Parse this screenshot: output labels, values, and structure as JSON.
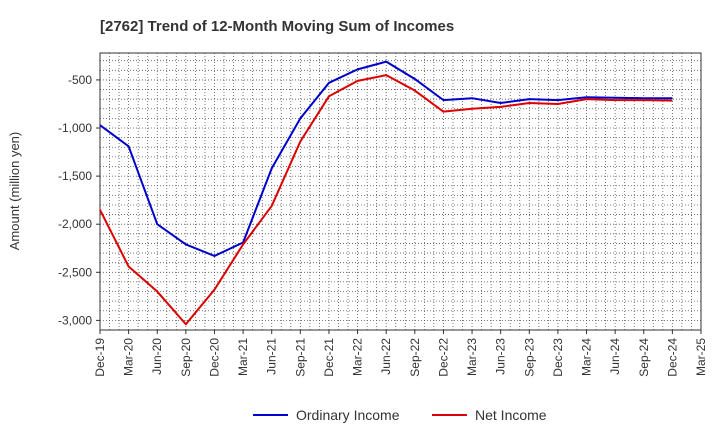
{
  "chart_data": {
    "type": "line",
    "title": "[2762]  Trend of 12-Month Moving Sum of Incomes",
    "xlabel": "",
    "ylabel": "Amount (million yen)",
    "ylim": [
      -3100,
      -220
    ],
    "yticks": [
      -500,
      -1000,
      -1500,
      -2000,
      -2500,
      -3000
    ],
    "ytick_labels": [
      "-500",
      "-1,000",
      "-1,500",
      "-2,000",
      "-2,500",
      "-3,000"
    ],
    "categories": [
      "Dec-19",
      "Mar-20",
      "Jun-20",
      "Sep-20",
      "Dec-20",
      "Mar-21",
      "Jun-21",
      "Sep-21",
      "Dec-21",
      "Mar-22",
      "Jun-22",
      "Sep-22",
      "Dec-22",
      "Mar-23",
      "Jun-23",
      "Sep-23",
      "Dec-23",
      "Mar-24",
      "Jun-24",
      "Sep-24",
      "Dec-24",
      "Mar-25"
    ],
    "grid": true,
    "legend_position": "bottom-center",
    "series": [
      {
        "name": "Ordinary Income",
        "color": "#0000cc",
        "values": [
          -970,
          -1190,
          -2000,
          -2210,
          -2330,
          -2190,
          -1420,
          -900,
          -530,
          -390,
          -310,
          -490,
          -710,
          -690,
          -740,
          -700,
          -710,
          -680,
          -685,
          -690,
          -690,
          null
        ]
      },
      {
        "name": "Net Income",
        "color": "#dd0000",
        "values": [
          -1850,
          -2440,
          -2700,
          -3040,
          -2680,
          -2210,
          -1810,
          -1140,
          -670,
          -510,
          -450,
          -610,
          -830,
          -800,
          -780,
          -740,
          -750,
          -700,
          -710,
          -710,
          -715,
          null
        ]
      }
    ]
  }
}
